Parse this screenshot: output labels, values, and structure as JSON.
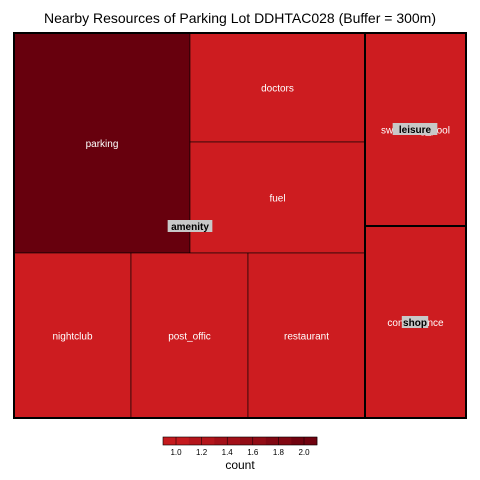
{
  "chart_data": {
    "type": "treemap",
    "title": "Nearby Resources of Parking Lot DDHTAC028 (Buffer = 300m)",
    "groups": [
      {
        "name": "amenity",
        "items": [
          {
            "label": "parking",
            "count": 2
          },
          {
            "label": "doctors",
            "count": 1
          },
          {
            "label": "fuel",
            "count": 1
          },
          {
            "label": "nightclub",
            "count": 1
          },
          {
            "label": "post_offic",
            "count": 1
          },
          {
            "label": "restaurant",
            "count": 1
          }
        ]
      },
      {
        "name": "leisure",
        "items": [
          {
            "label": "swimming_pool",
            "count": 1,
            "shown_label": "swimming_pool"
          }
        ]
      },
      {
        "name": "shop",
        "items": [
          {
            "label": "convenience",
            "count": 1
          }
        ]
      }
    ],
    "legend": {
      "title": "count",
      "ticks": [
        "1.0",
        "1.2",
        "1.4",
        "1.6",
        "1.8",
        "2.0"
      ],
      "range": [
        1,
        2
      ],
      "position": "bottom"
    },
    "colors": {
      "low": "#cd1c20",
      "high": "#67000d"
    }
  }
}
